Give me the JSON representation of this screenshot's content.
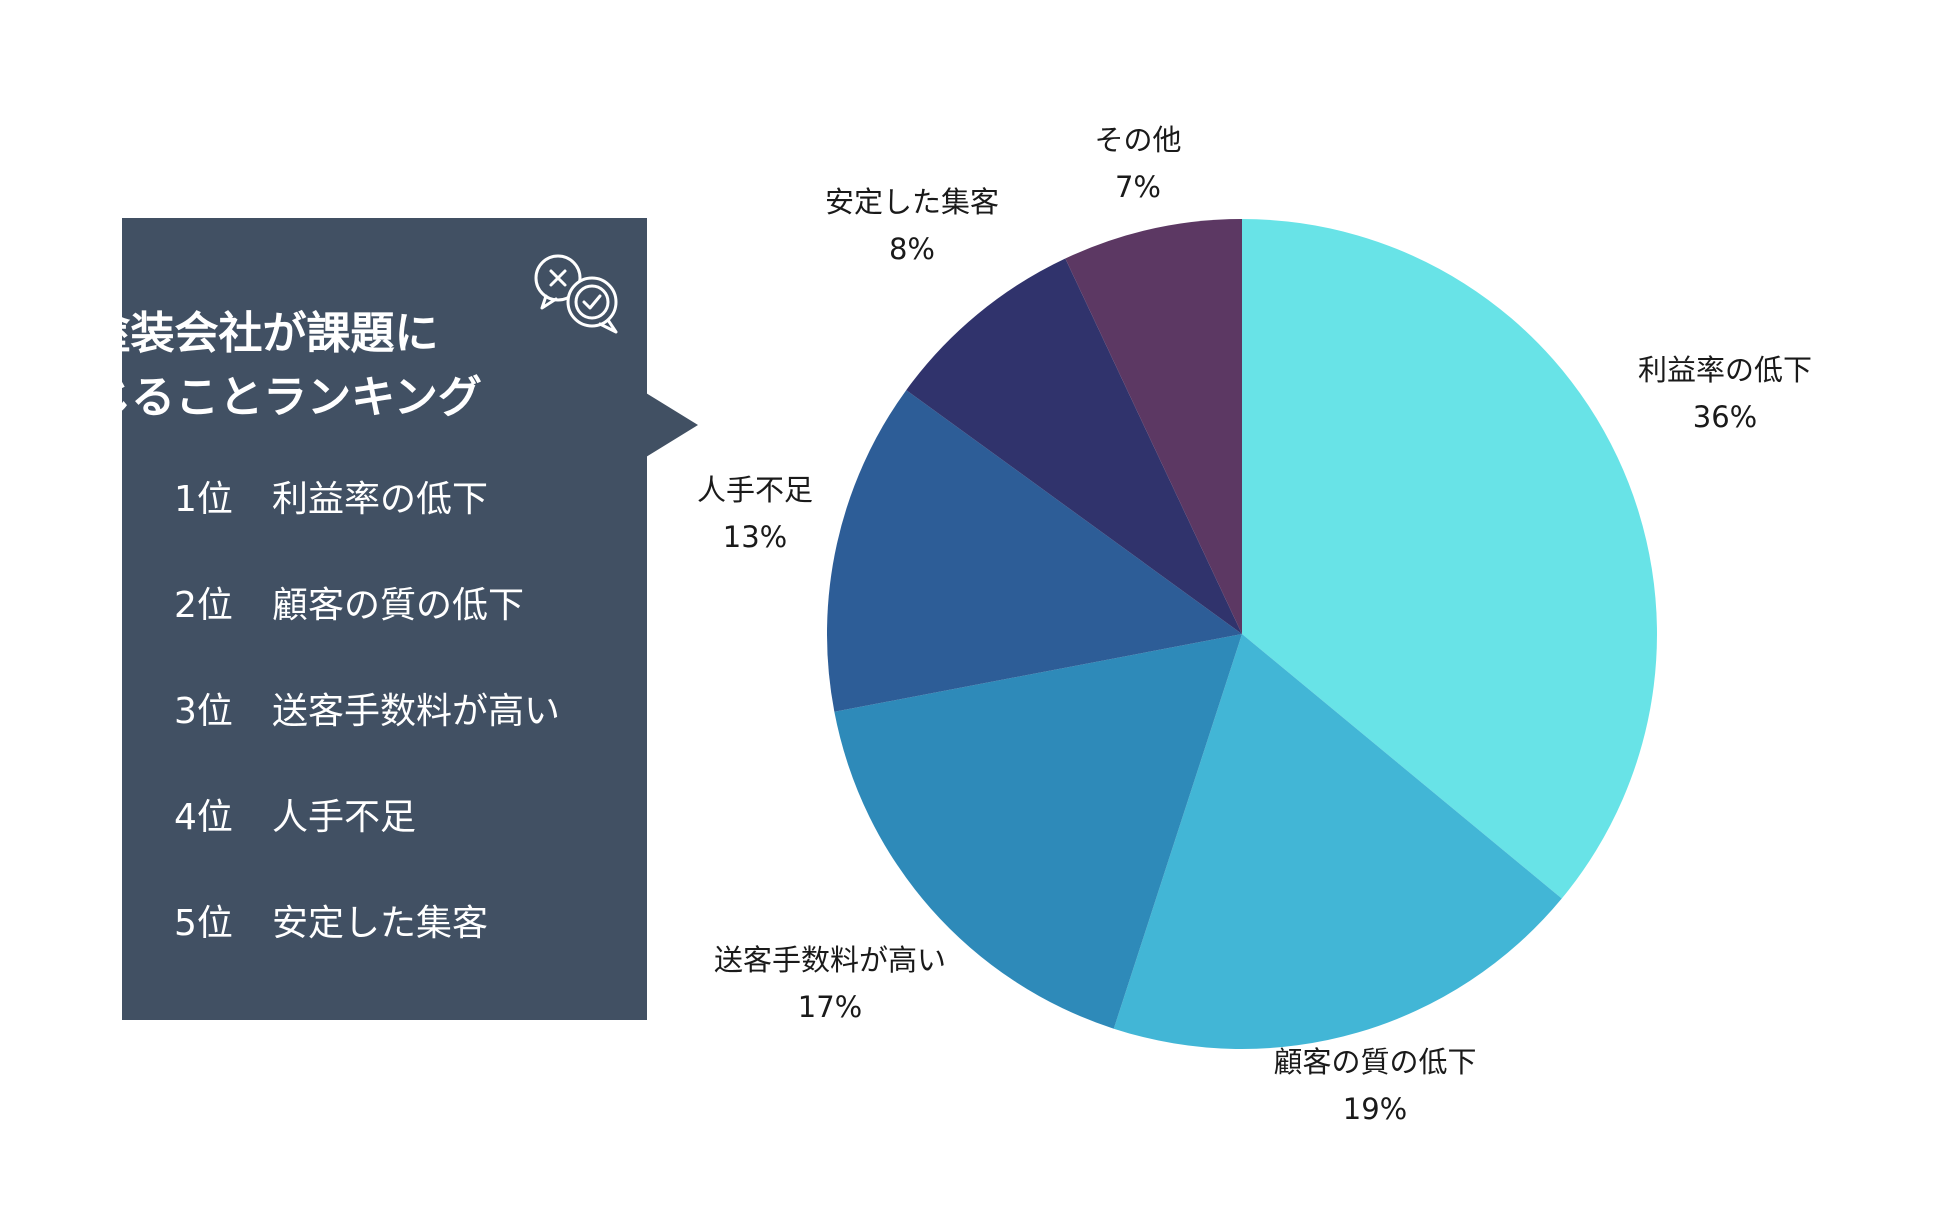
{
  "panel": {
    "title_line1": "塗装会社が課題に",
    "title_line2": "感じることランキング",
    "icon": "speech-bubbles-check-cross-icon",
    "background_color": "#415063",
    "ranking": [
      {
        "rank": "1位",
        "label": "利益率の低下"
      },
      {
        "rank": "2位",
        "label": "顧客の質の低下"
      },
      {
        "rank": "3位",
        "label": "送客手数料が高い"
      },
      {
        "rank": "4位",
        "label": "人手不足"
      },
      {
        "rank": "5位",
        "label": "安定した集客"
      }
    ]
  },
  "chart_data": {
    "type": "pie",
    "start_angle_deg": 0,
    "direction": "clockwise",
    "slices": [
      {
        "label": "利益率の低下",
        "percent_label": "36%",
        "value": 36,
        "color": "#68e3e7"
      },
      {
        "label": "顧客の質の低下",
        "percent_label": "19%",
        "value": 19,
        "color": "#42b6d6"
      },
      {
        "label": "送客手数料が高い",
        "percent_label": "17%",
        "value": 17,
        "color": "#2e8ab9"
      },
      {
        "label": "人手不足",
        "percent_label": "13%",
        "value": 13,
        "color": "#2d5d97"
      },
      {
        "label": "安定した集客",
        "percent_label": "8%",
        "value": 8,
        "color": "#30336c"
      },
      {
        "label": "その他",
        "percent_label": "7%",
        "value": 7,
        "color": "#5c3863"
      }
    ]
  }
}
